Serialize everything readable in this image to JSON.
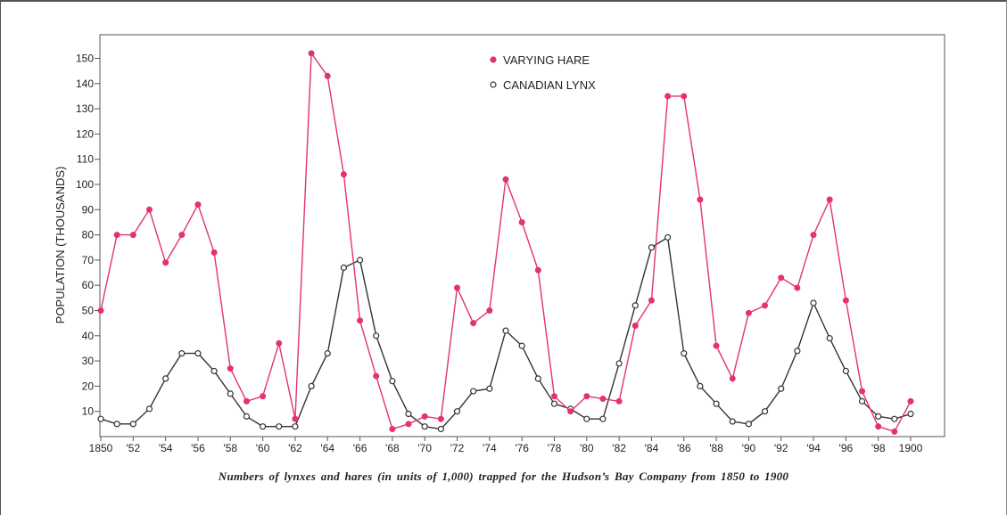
{
  "caption": "Numbers of lynxes and hares (in units of 1,000) trapped for the Hudson’s Bay Company from 1850 to 1900",
  "chart_data": {
    "type": "line",
    "title": "",
    "xlabel": "",
    "ylabel": "POPULATION (THOUSANDS)",
    "xlim": [
      1850,
      1906
    ],
    "ylim": [
      0,
      160
    ],
    "x_ticks": [
      1850,
      1852,
      1854,
      1856,
      1858,
      1860,
      1862,
      1864,
      1866,
      1868,
      1870,
      1872,
      1874,
      1876,
      1878,
      1880,
      1882,
      1884,
      1886,
      1888,
      1890,
      1892,
      1894,
      1896,
      1898,
      1900
    ],
    "x_tick_labels": [
      "1850",
      "'52",
      "'54",
      "'56",
      "'58",
      "'60",
      "'62",
      "'64",
      "'66",
      "'68",
      "'70",
      "'72",
      "'74",
      "'76",
      "'78",
      "'80",
      "'82",
      "'84",
      "'86",
      "'88",
      "'90",
      "'92",
      "'94",
      "'96",
      "'98",
      "1900"
    ],
    "y_ticks": [
      10,
      20,
      30,
      40,
      50,
      60,
      70,
      80,
      90,
      100,
      110,
      120,
      130,
      140,
      150
    ],
    "legend_position": "top-center",
    "x": [
      1850,
      1851,
      1852,
      1853,
      1854,
      1855,
      1856,
      1857,
      1858,
      1859,
      1860,
      1861,
      1862,
      1863,
      1864,
      1865,
      1866,
      1867,
      1868,
      1869,
      1870,
      1871,
      1872,
      1873,
      1874,
      1875,
      1876,
      1877,
      1878,
      1879,
      1880,
      1881,
      1882,
      1883,
      1884,
      1885,
      1886,
      1887,
      1888,
      1889,
      1890,
      1891,
      1892,
      1893,
      1894,
      1895,
      1896,
      1897,
      1898,
      1899,
      1900
    ],
    "series": [
      {
        "name": "VARYING HARE",
        "color": "#e3336f",
        "marker": "filled-circle",
        "values": [
          50,
          80,
          80,
          90,
          69,
          80,
          92,
          73,
          27,
          14,
          16,
          37,
          7,
          152,
          143,
          104,
          46,
          24,
          3,
          5,
          8,
          7,
          59,
          45,
          50,
          102,
          85,
          66,
          16,
          10,
          16,
          15,
          14,
          44,
          54,
          135,
          135,
          94,
          36,
          23,
          49,
          52,
          63,
          59,
          80,
          94,
          54,
          18,
          4,
          2,
          14
        ]
      },
      {
        "name": "CANADIAN LYNX",
        "color": "#333333",
        "marker": "open-circle",
        "values": [
          7,
          5,
          5,
          11,
          23,
          33,
          33,
          26,
          17,
          8,
          4,
          4,
          4,
          20,
          33,
          67,
          70,
          40,
          22,
          9,
          4,
          3,
          10,
          18,
          19,
          42,
          36,
          23,
          13,
          11,
          7,
          7,
          29,
          52,
          75,
          79,
          33,
          20,
          13,
          6,
          5,
          10,
          19,
          34,
          53,
          39,
          26,
          14,
          8,
          7,
          9
        ]
      }
    ]
  }
}
